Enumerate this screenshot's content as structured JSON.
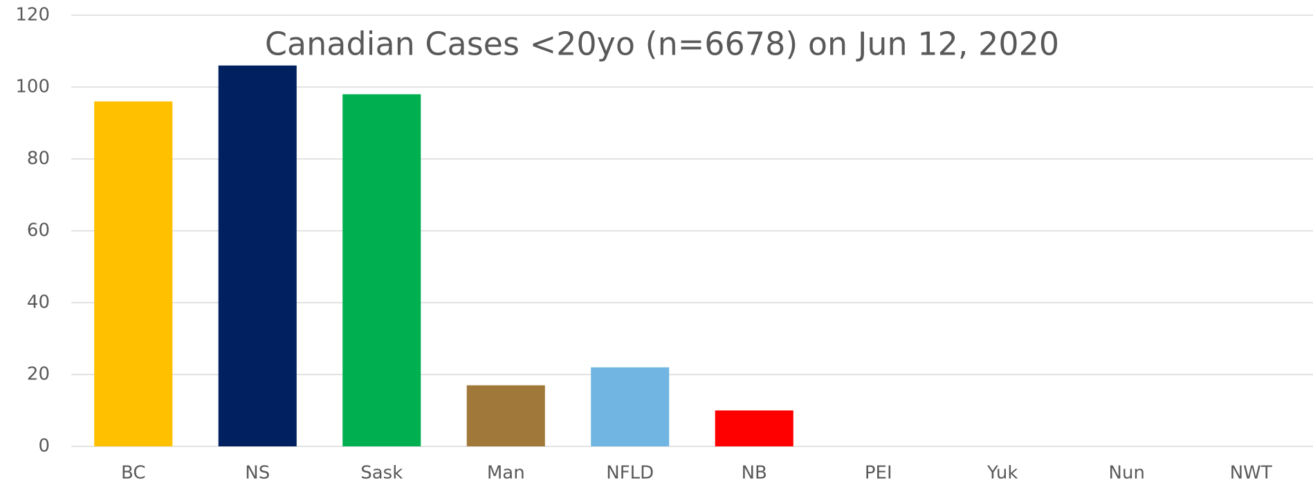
{
  "chart_data": {
    "type": "bar",
    "title": "Canadian Cases <20yo (n=6678) on Jun 12, 2020",
    "categories": [
      "BC",
      "NS",
      "Sask",
      "Man",
      "NFLD",
      "NB",
      "PEI",
      "Yuk",
      "Nun",
      "NWT"
    ],
    "values": [
      96,
      106,
      98,
      17,
      22,
      10,
      0,
      0,
      0,
      0
    ],
    "colors": [
      "#ffc000",
      "#002060",
      "#00b050",
      "#a0793a",
      "#71b6e3",
      "#ff0000",
      "#4472c4",
      "#4472c4",
      "#4472c4",
      "#4472c4"
    ],
    "ylim": [
      0,
      120
    ],
    "yticks": [
      0,
      20,
      40,
      60,
      80,
      100,
      120
    ],
    "grid": true
  }
}
